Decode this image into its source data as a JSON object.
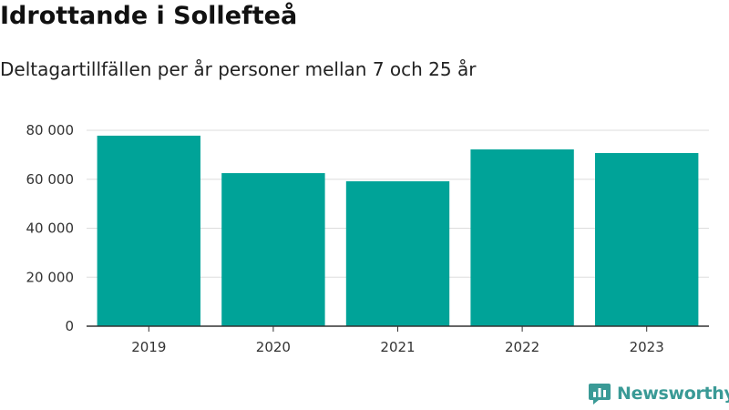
{
  "header": {
    "title": "Idrottande i Sollefteå",
    "subtitle": "Deltagartillfällen per år personer mellan 7 och 25 år"
  },
  "brand": {
    "name": "Newsworthy",
    "icon": "newsworthy-logo-icon",
    "color": "#3a9a96"
  },
  "chart_data": {
    "type": "bar",
    "categories": [
      "2019",
      "2020",
      "2021",
      "2022",
      "2023"
    ],
    "values": [
      77800,
      62500,
      59200,
      72200,
      70700
    ],
    "title": "Idrottande i Sollefteå",
    "subtitle": "Deltagartillfällen per år personer mellan 7 och 25 år",
    "xlabel": "",
    "ylabel": "",
    "ylim": [
      0,
      80000
    ],
    "yticks": [
      0,
      20000,
      40000,
      60000,
      80000
    ],
    "ytick_labels": [
      "0",
      "20 000",
      "40 000",
      "60 000",
      "80 000"
    ],
    "grid": true,
    "legend": "none",
    "bar_color": "#00a398"
  }
}
